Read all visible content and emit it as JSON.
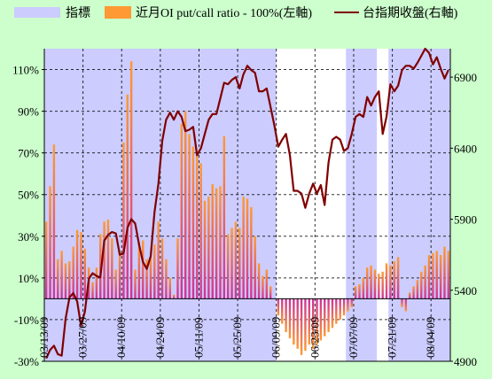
{
  "chart_data": {
    "type": "bar",
    "legend": [
      {
        "name": "指標",
        "kind": "band",
        "color": "#ccccff"
      },
      {
        "name": "近月OI put/call ratio - 100%(左軸)",
        "kind": "bar",
        "color": "#ff9933"
      },
      {
        "name": "台指期收盤(右軸)",
        "kind": "line",
        "color": "#800000"
      }
    ],
    "left_axis": {
      "min": -30,
      "max": 120,
      "ticks": [
        -30,
        -10,
        10,
        30,
        50,
        70,
        90,
        110
      ],
      "suffix": "%"
    },
    "right_axis": {
      "min": 4900,
      "max": 7100,
      "ticks": [
        4900,
        5400,
        5900,
        6400,
        6900
      ]
    },
    "x_tick_labels": [
      "03/13/09",
      "03/27/09",
      "04/10/09",
      "04/24/09",
      "05/11/09",
      "05/25/09",
      "06/09/09",
      "06/23/09",
      "07/07/09",
      "07/21/09",
      "08/04/09"
    ],
    "x_tick_index": [
      0,
      10,
      20,
      30,
      40,
      50,
      60,
      70,
      80,
      90,
      100
    ],
    "bar_values": [
      37,
      54,
      74,
      19,
      23,
      17,
      18,
      25,
      33,
      32,
      24,
      15,
      8,
      15,
      31,
      37,
      38,
      29,
      14,
      23,
      75,
      98,
      114,
      14,
      27,
      28,
      19,
      20,
      26,
      37,
      29,
      19,
      10,
      2,
      29,
      84,
      90,
      79,
      73,
      70,
      65,
      47,
      49,
      55,
      53,
      54,
      78,
      31,
      34,
      37,
      34,
      49,
      48,
      44,
      30,
      17,
      11,
      14,
      6,
      0,
      -8,
      -12,
      -16,
      -19,
      -22,
      -24,
      -27,
      -25,
      -22,
      -24,
      -22,
      -20,
      -18,
      -16,
      -14,
      -12,
      -10,
      -8,
      -6,
      -4,
      6,
      7,
      10,
      15,
      16,
      14,
      12,
      13,
      17,
      16,
      18,
      20,
      -4,
      -6,
      3,
      6,
      9,
      13,
      16,
      21,
      22,
      23,
      21,
      25,
      23
    ],
    "line_values": [
      4920,
      4980,
      5010,
      4950,
      4940,
      5200,
      5350,
      5380,
      5320,
      5150,
      5250,
      5480,
      5520,
      5500,
      5490,
      5750,
      5790,
      5810,
      5800,
      5650,
      5660,
      5840,
      5900,
      5870,
      5720,
      5600,
      5550,
      5640,
      5950,
      6150,
      6450,
      6600,
      6650,
      6600,
      6660,
      6620,
      6520,
      6530,
      6550,
      6350,
      6400,
      6500,
      6600,
      6640,
      6640,
      6750,
      6860,
      6850,
      6880,
      6900,
      6820,
      6920,
      6980,
      6950,
      6930,
      6800,
      6800,
      6820,
      6690,
      6560,
      6410,
      6460,
      6500,
      6350,
      6100,
      6100,
      6080,
      5980,
      6080,
      6150,
      6080,
      6140,
      6000,
      6300,
      6460,
      6480,
      6460,
      6380,
      6400,
      6500,
      6620,
      6640,
      6620,
      6760,
      6700,
      6760,
      6800,
      6500,
      6620,
      6850,
      6800,
      6840,
      6950,
      6980,
      6980,
      6960,
      7000,
      7050,
      7100,
      7070,
      6990,
      7040,
      6960,
      6890,
      6950
    ],
    "shade_ranges": [
      [
        0,
        59
      ],
      [
        78,
        85
      ],
      [
        89,
        104
      ]
    ],
    "colors": {
      "background": "#ccffcc",
      "band": "#ccccff",
      "bar": "#ff9933",
      "bar_negative": "#cc3399",
      "line": "#800000"
    }
  }
}
